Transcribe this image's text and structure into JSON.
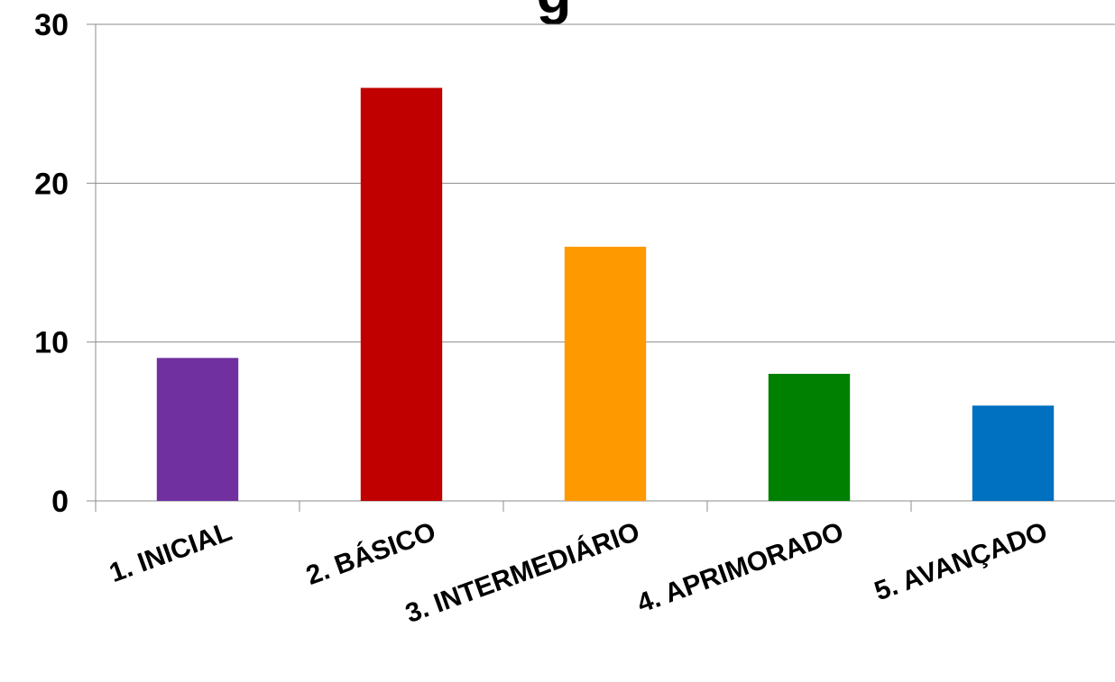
{
  "chart_data": {
    "type": "bar",
    "categories": [
      "1. INICIAL",
      "2. BÁSICO",
      "3. INTERMEDIÁRIO",
      "4. APRIMORADO",
      "5. AVANÇADO"
    ],
    "values": [
      9,
      26,
      16,
      8,
      6
    ],
    "colors": [
      "#7030A0",
      "#C00000",
      "#FF9900",
      "#008000",
      "#0070C0"
    ],
    "title": "g",
    "xlabel": "",
    "ylabel": "",
    "ylim": [
      0,
      30
    ],
    "yticks": [
      0,
      10,
      20,
      30
    ],
    "grid": true,
    "legend": "none"
  }
}
